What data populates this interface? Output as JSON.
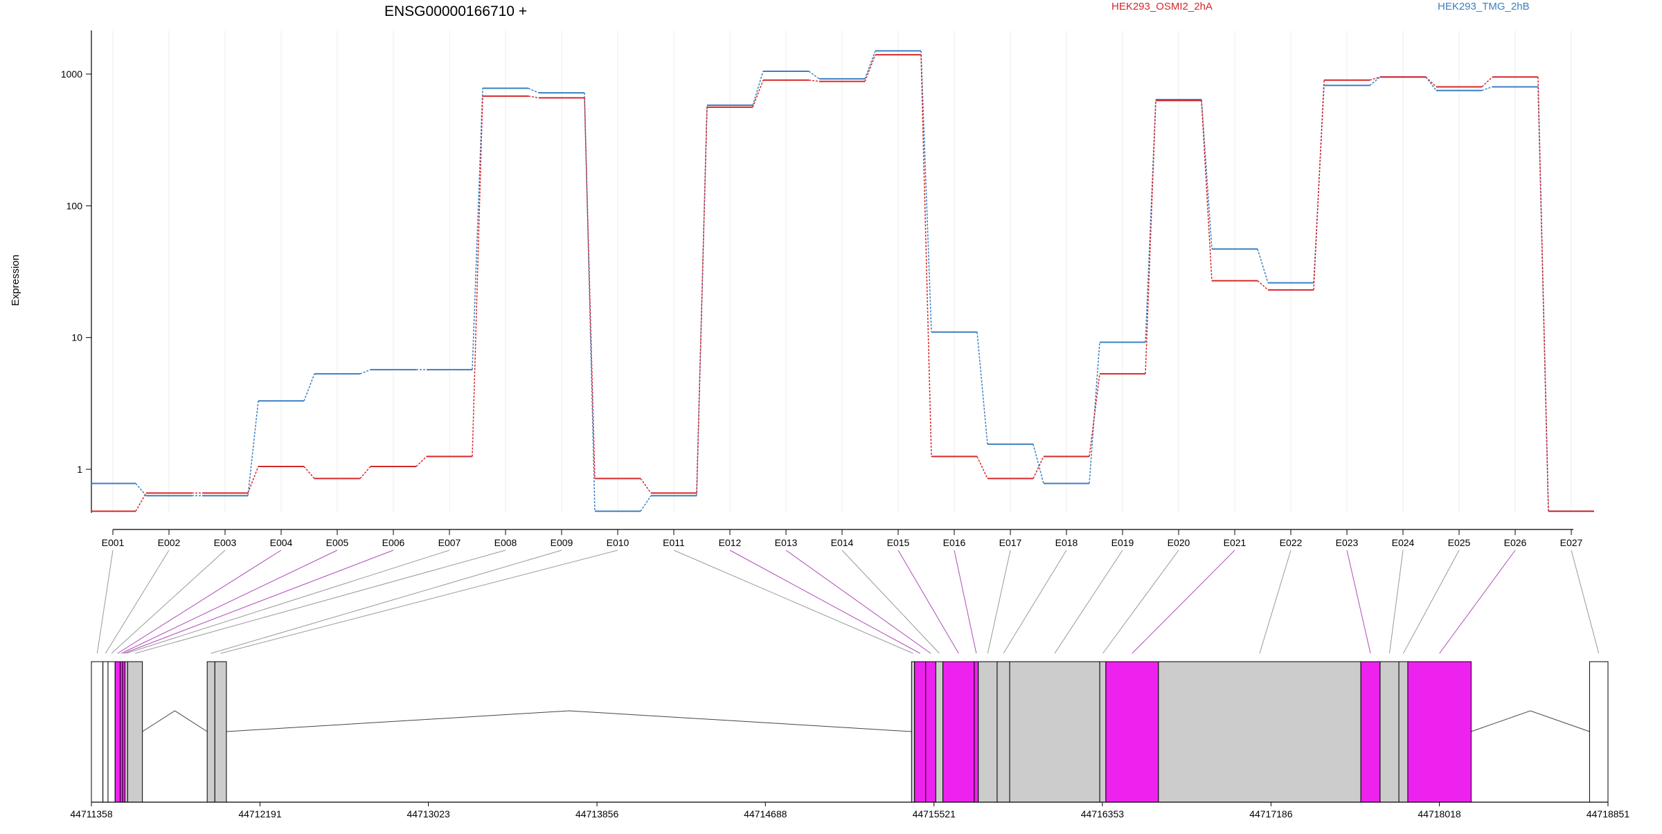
{
  "chart_data": {
    "type": "line",
    "title": "ENSG00000166710 +",
    "ylabel": "Expression",
    "yscale": "log",
    "ylim": [
      0.4,
      2000
    ],
    "yticks": [
      1,
      10,
      100,
      1000
    ],
    "ytick_labels": [
      "1",
      "10",
      "100",
      "1000"
    ],
    "grid": "vertical",
    "legend_position": "top",
    "colors": {
      "HEK293_OSMI2_2hA": "#d62728",
      "HEK293_TMG_2hB": "#3a7fc1",
      "exon_gray": "#cccccc",
      "exon_magenta": "#ee22ee",
      "link_gray": "#999999",
      "link_magenta": "#b04ab8"
    },
    "categories": [
      "E001",
      "E002",
      "E003",
      "E004",
      "E005",
      "E006",
      "E007",
      "E008",
      "E009",
      "E010",
      "E011",
      "E012",
      "E013",
      "E014",
      "E015",
      "E016",
      "E017",
      "E018",
      "E019",
      "E020",
      "E021",
      "E022",
      "E023",
      "E024",
      "E025",
      "E026",
      "E027"
    ],
    "series": [
      {
        "name": "HEK293_OSMI2_2hA",
        "values": [
          0.48,
          0.66,
          0.66,
          1.05,
          0.85,
          1.05,
          1.25,
          680,
          660,
          0.85,
          0.66,
          560,
          900,
          880,
          1400,
          1.25,
          0.85,
          1.25,
          5.3,
          630,
          27,
          23,
          900,
          950,
          800,
          950,
          0.48
        ]
      },
      {
        "name": "HEK293_TMG_2hB",
        "values": [
          0.78,
          0.63,
          0.63,
          3.3,
          5.3,
          5.7,
          5.7,
          780,
          720,
          0.48,
          0.63,
          580,
          1050,
          920,
          1500,
          11,
          1.55,
          0.78,
          9.2,
          640,
          47,
          26,
          820,
          950,
          750,
          800,
          0.48
        ]
      }
    ],
    "gene_model": {
      "coord_range": [
        44711358,
        44718851
      ],
      "coord_ticks": [
        44711358,
        44712191,
        44713023,
        44713856,
        44714688,
        44715521,
        44716353,
        44717186,
        44718018,
        44718851
      ],
      "exons": [
        {
          "id": "E001",
          "start": 44711358,
          "end": 44711415,
          "fill": "white"
        },
        {
          "id": "E002",
          "start": 44711415,
          "end": 44711440,
          "fill": "white"
        },
        {
          "id": "E003",
          "start": 44711440,
          "end": 44711475,
          "fill": "white"
        },
        {
          "id": "E004",
          "start": 44711475,
          "end": 44711500,
          "fill": "magenta"
        },
        {
          "id": "E005",
          "start": 44711500,
          "end": 44711512,
          "fill": "magenta"
        },
        {
          "id": "E006",
          "start": 44711512,
          "end": 44711524,
          "fill": "magenta"
        },
        {
          "id": "E007",
          "start": 44711524,
          "end": 44711537,
          "fill": "gray"
        },
        {
          "id": "E008",
          "start": 44711537,
          "end": 44711610,
          "fill": "gray"
        },
        {
          "id": "E009",
          "start": 44711930,
          "end": 44711968,
          "fill": "gray"
        },
        {
          "id": "E010",
          "start": 44711968,
          "end": 44712025,
          "fill": "gray"
        },
        {
          "id": "E011",
          "start": 44715410,
          "end": 44715425,
          "fill": "gray"
        },
        {
          "id": "E012",
          "start": 44715425,
          "end": 44715480,
          "fill": "magenta"
        },
        {
          "id": "E013",
          "start": 44715480,
          "end": 44715530,
          "fill": "magenta"
        },
        {
          "id": "E014",
          "start": 44715530,
          "end": 44715565,
          "fill": "gray"
        },
        {
          "id": "E015",
          "start": 44715565,
          "end": 44715720,
          "fill": "magenta"
        },
        {
          "id": "E016",
          "start": 44715720,
          "end": 44715740,
          "fill": "magenta"
        },
        {
          "id": "E017",
          "start": 44715740,
          "end": 44715833,
          "fill": "gray"
        },
        {
          "id": "E018",
          "start": 44715833,
          "end": 44715895,
          "fill": "gray"
        },
        {
          "id": "E019",
          "start": 44715895,
          "end": 44716340,
          "fill": "gray"
        },
        {
          "id": "E020",
          "start": 44716340,
          "end": 44716370,
          "fill": "gray"
        },
        {
          "id": "E021",
          "start": 44716370,
          "end": 44716630,
          "fill": "magenta"
        },
        {
          "id": "E022",
          "start": 44716630,
          "end": 44717630,
          "fill": "gray"
        },
        {
          "id": "E023",
          "start": 44717630,
          "end": 44717725,
          "fill": "magenta"
        },
        {
          "id": "E024",
          "start": 44717725,
          "end": 44717818,
          "fill": "gray"
        },
        {
          "id": "E025",
          "start": 44717818,
          "end": 44717862,
          "fill": "gray"
        },
        {
          "id": "E026",
          "start": 44717862,
          "end": 44718175,
          "fill": "magenta"
        },
        {
          "id": "E027",
          "start": 44718760,
          "end": 44718851,
          "fill": "white"
        }
      ],
      "introns": [
        [
          44711610,
          44711930
        ],
        [
          44712025,
          44715410
        ],
        [
          44718175,
          44718760
        ]
      ]
    }
  }
}
